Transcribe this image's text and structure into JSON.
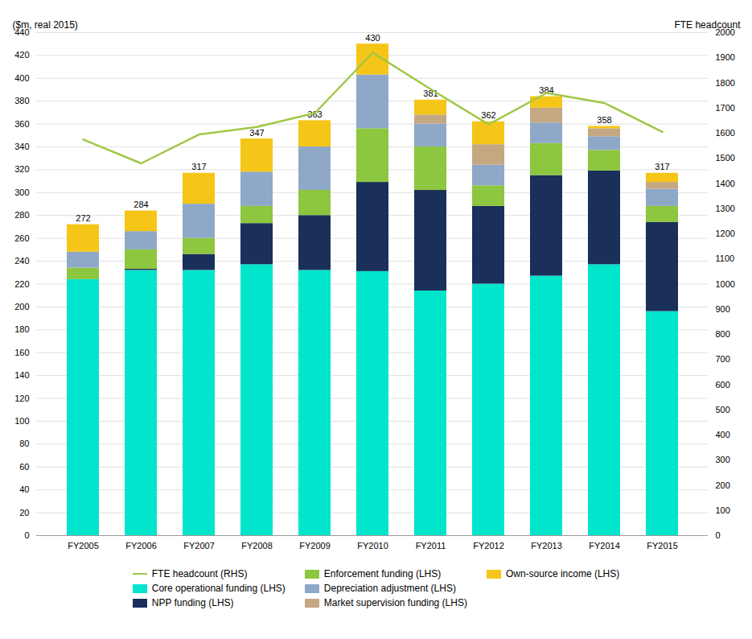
{
  "chart_data": {
    "type": "bar",
    "stacked": true,
    "categories": [
      "FY2005",
      "FY2006",
      "FY2007",
      "FY2008",
      "FY2009",
      "FY2010",
      "FY2011",
      "FY2012",
      "FY2013",
      "FY2014",
      "FY2015"
    ],
    "series": [
      {
        "name": "Core operational funding (LHS)",
        "color": "#00e5cc",
        "values": [
          224,
          232,
          232,
          237,
          232,
          231,
          214,
          220,
          227,
          237,
          196
        ]
      },
      {
        "name": "NPP funding (LHS)",
        "color": "#1a2f5a",
        "values": [
          0,
          1,
          14,
          36,
          48,
          78,
          88,
          68,
          88,
          82,
          78
        ]
      },
      {
        "name": "Enforcement funding (LHS)",
        "color": "#8dc63f",
        "values": [
          10,
          17,
          14,
          15,
          22,
          47,
          38,
          18,
          28,
          18,
          14
        ]
      },
      {
        "name": "Depreciation adjustment (LHS)",
        "color": "#8fa8c8",
        "values": [
          14,
          16,
          30,
          30,
          38,
          47,
          20,
          18,
          18,
          12,
          15
        ]
      },
      {
        "name": "Market supervision funding (LHS)",
        "color": "#c4a882",
        "values": [
          0,
          0,
          0,
          0,
          0,
          0,
          8,
          18,
          13,
          7,
          6
        ]
      },
      {
        "name": "Own-source income (LHS)",
        "color": "#f5c518",
        "values": [
          24,
          18,
          27,
          29,
          23,
          27,
          13,
          20,
          10,
          2,
          8
        ]
      },
      {
        "name": "FTE headcount (RHS)",
        "type": "line",
        "axis": "y2",
        "color": "#a0c846",
        "values": [
          1575,
          1480,
          1595,
          1625,
          1680,
          1920,
          1775,
          1635,
          1760,
          1720,
          1605
        ]
      }
    ],
    "totals": [
      272,
      284,
      317,
      347,
      363,
      430,
      381,
      362,
      384,
      358,
      317
    ],
    "ylabel": "($m, real 2015)",
    "y2label": "FTE headcount",
    "ylim": [
      0,
      440
    ],
    "yticks": [
      0,
      20,
      40,
      60,
      80,
      100,
      120,
      140,
      160,
      180,
      200,
      220,
      240,
      260,
      280,
      300,
      320,
      340,
      360,
      380,
      400,
      420,
      440
    ],
    "y2lim": [
      0,
      2000
    ],
    "y2ticks": [
      0,
      100,
      200,
      300,
      400,
      500,
      600,
      700,
      800,
      900,
      1000,
      1100,
      1200,
      1300,
      1400,
      1500,
      1600,
      1700,
      1800,
      1900,
      2000
    ],
    "grid": true,
    "legend": "bottom"
  }
}
